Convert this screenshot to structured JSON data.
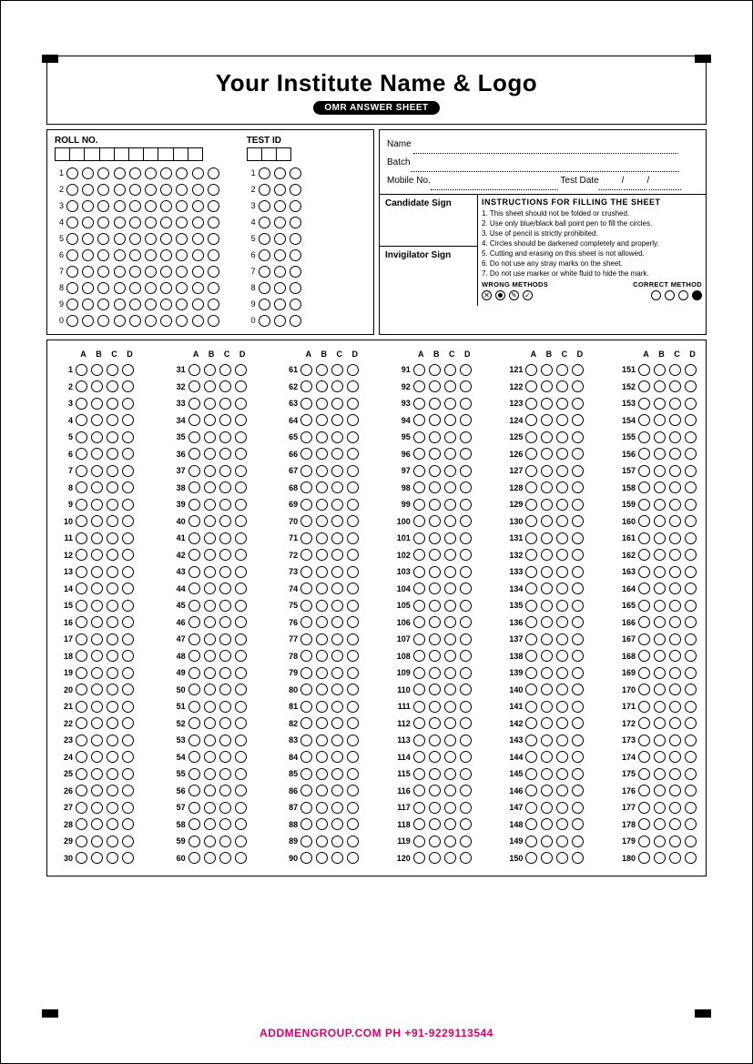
{
  "title": "Your Institute Name & Logo",
  "subtitle": "OMR ANSWER SHEET",
  "roll": {
    "label": "ROLL NO.",
    "digits": 10,
    "rows": [
      "1",
      "2",
      "3",
      "4",
      "5",
      "6",
      "7",
      "8",
      "9",
      "0"
    ]
  },
  "testid": {
    "label": "TEST ID",
    "digits": 3,
    "rows": [
      "1",
      "2",
      "3",
      "4",
      "5",
      "6",
      "7",
      "8",
      "9",
      "0"
    ]
  },
  "info": {
    "name_label": "Name",
    "batch_label": "Batch",
    "mobile_label": "Mobile No.",
    "testdate_label": "Test Date",
    "candidate_sign": "Candidate Sign",
    "invigilator_sign": "Invigilator Sign"
  },
  "instructions": {
    "title": "INSTRUCTIONS FOR FILLING THE SHEET",
    "items": [
      "1. This sheet should not be folded or crushed.",
      "2. Use only blue/black ball point pen to fill the circles.",
      "3. Use of pencil is strictly prohibited.",
      "4. Circles should be darkened completely and properly.",
      "5. Cutting and erasing on this sheet is not allowed.",
      "6. Do not use any stray marks on the sheet.",
      "7. Do not use marker or white fluid to hide the mark."
    ],
    "wrong_label": "WRONG METHODS",
    "correct_label": "CORRECT METHOD"
  },
  "answers": {
    "options": [
      "A",
      "B",
      "C",
      "D"
    ],
    "total_questions": 180,
    "columns": 6,
    "per_column": 30
  },
  "footer": "ADDMENGROUP.COM   PH +91-9229113544",
  "colors": {
    "border": "#000000",
    "footer": "#d6006c",
    "background": "#ffffff"
  }
}
